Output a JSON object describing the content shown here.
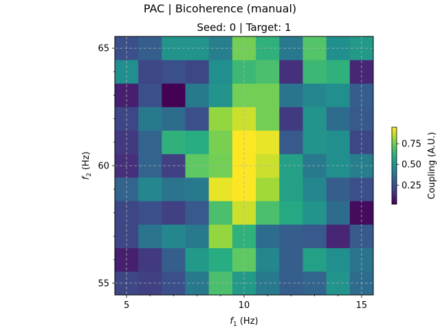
{
  "figure": {
    "suptitle": "PAC | Bicoherence (manual)",
    "title": "Seed: 0 | Target: 1"
  },
  "chart_data": {
    "type": "heatmap",
    "title": "Seed: 0 | Target: 1",
    "xlabel_main": "f",
    "xlabel_sub": "1",
    "xlabel_unit": " (Hz)",
    "ylabel_main": "f",
    "ylabel_sub": "2",
    "ylabel_unit": " (Hz)",
    "x": [
      5,
      6,
      7,
      8,
      9,
      10,
      11,
      12,
      13,
      14,
      15
    ],
    "y": [
      55,
      56,
      57,
      58,
      59,
      60,
      61,
      62,
      63,
      64,
      65
    ],
    "xlim": [
      4.5,
      15.5
    ],
    "ylim": [
      54.5,
      65.5
    ],
    "xticks": [
      5,
      10,
      15
    ],
    "yticks": [
      55,
      60,
      65
    ],
    "grid": true,
    "colormap": "viridis",
    "colorbar": {
      "label": "Coupling (A.U.)",
      "range": [
        0.02,
        0.95
      ],
      "ticks": [
        0.25,
        0.5,
        0.75
      ],
      "tick_labels": [
        "0.25",
        "0.50",
        "0.75"
      ]
    },
    "values": [
      [
        0.22,
        0.2,
        0.25,
        0.4,
        0.68,
        0.52,
        0.4,
        0.3,
        0.32,
        0.5,
        0.35
      ],
      [
        0.1,
        0.18,
        0.3,
        0.52,
        0.6,
        0.72,
        0.45,
        0.3,
        0.55,
        0.48,
        0.38
      ],
      [
        0.22,
        0.38,
        0.45,
        0.4,
        0.8,
        0.62,
        0.35,
        0.3,
        0.28,
        0.12,
        0.28
      ],
      [
        0.22,
        0.25,
        0.2,
        0.28,
        0.68,
        0.88,
        0.68,
        0.58,
        0.5,
        0.35,
        0.05
      ],
      [
        0.32,
        0.45,
        0.38,
        0.4,
        0.92,
        0.95,
        0.82,
        0.55,
        0.45,
        0.3,
        0.25
      ],
      [
        0.15,
        0.32,
        0.2,
        0.72,
        0.75,
        0.95,
        0.88,
        0.55,
        0.4,
        0.48,
        0.42
      ],
      [
        0.18,
        0.32,
        0.62,
        0.6,
        0.76,
        0.95,
        0.92,
        0.28,
        0.5,
        0.48,
        0.22
      ],
      [
        0.22,
        0.4,
        0.35,
        0.25,
        0.8,
        0.88,
        0.75,
        0.18,
        0.5,
        0.35,
        0.28
      ],
      [
        0.1,
        0.25,
        0.02,
        0.4,
        0.5,
        0.75,
        0.75,
        0.38,
        0.45,
        0.48,
        0.3
      ],
      [
        0.48,
        0.22,
        0.25,
        0.22,
        0.48,
        0.65,
        0.68,
        0.15,
        0.65,
        0.62,
        0.12
      ],
      [
        0.25,
        0.3,
        0.5,
        0.5,
        0.42,
        0.75,
        0.62,
        0.4,
        0.7,
        0.48,
        0.52
      ]
    ]
  }
}
